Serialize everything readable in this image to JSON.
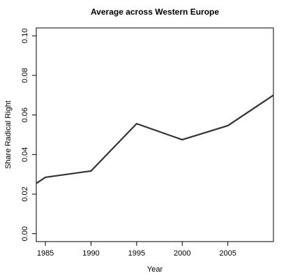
{
  "chart_data": {
    "type": "line",
    "title": "Average across Western Europe",
    "x_label": "Year",
    "y_label": "Share Radical Right",
    "x": [
      1984,
      1985,
      1990,
      1995,
      2000,
      2005,
      2010
    ],
    "series": [
      {
        "color": "#333333",
        "values": [
          0.0254,
          0.0285,
          0.0317,
          0.0556,
          0.0475,
          0.0546,
          0.07
        ]
      }
    ],
    "xlim": [
      1984,
      2010
    ],
    "xticks": [
      1985,
      1990,
      1995,
      2000,
      2005
    ],
    "ylim": [
      -0.004,
      0.104
    ],
    "yticks": [
      {
        "value": 0,
        "label": "0.00"
      },
      {
        "value": 0.02,
        "label": "0.02"
      },
      {
        "value": 0.04,
        "label": "0.04"
      },
      {
        "value": 0.06,
        "label": "0.06"
      },
      {
        "value": 0.08,
        "label": "0.08"
      },
      {
        "value": 0.1,
        "label": "0.10"
      }
    ]
  }
}
